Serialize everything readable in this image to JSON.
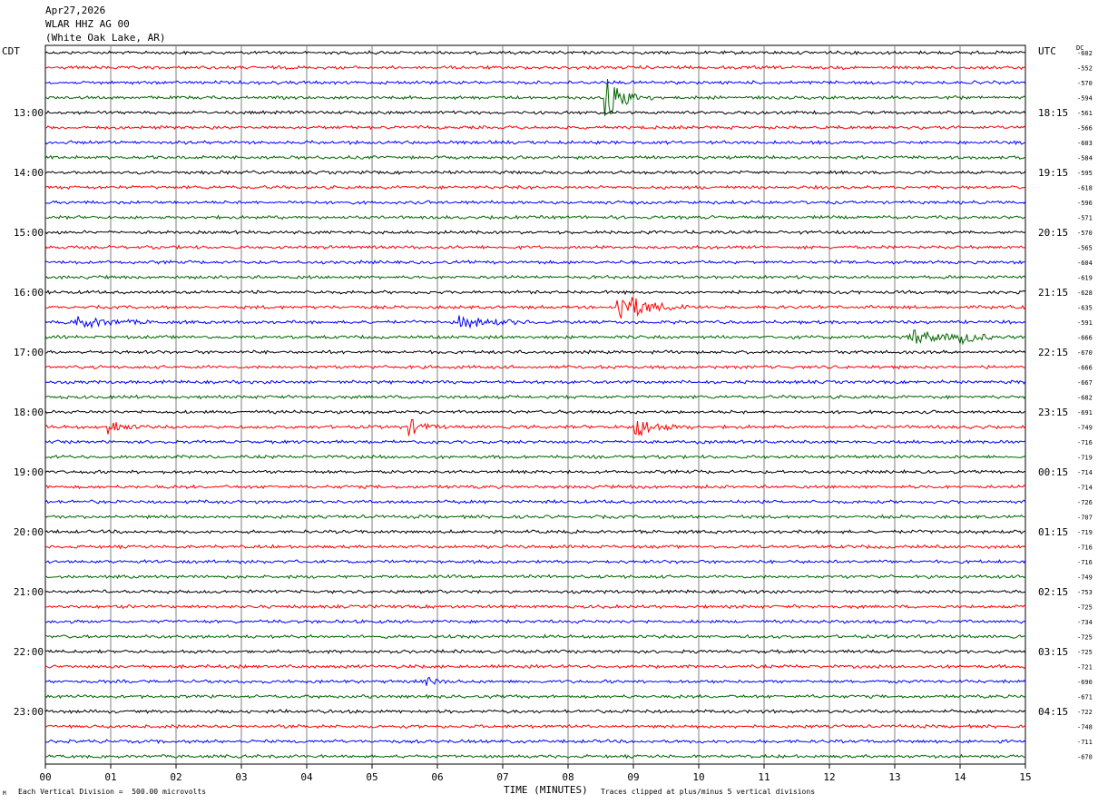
{
  "header": {
    "date": "Apr27,2026",
    "station": "WLAR HHZ AG 00",
    "location": "(White Oak Lake, AR)"
  },
  "left_axis_title": "CDT",
  "right_axis_title": "UTC",
  "dc_title": "DC",
  "footer": {
    "scale_note": "Each Vertical Division =  500.00 microvolts",
    "xlabel": "TIME (MINUTES)",
    "clip_note": "Traces clipped at plus/minus 5 vertical divisions",
    "corner_mark": "M"
  },
  "chart_data": {
    "type": "line",
    "title": "WLAR HHZ AG 00",
    "xlabel": "TIME (MINUTES)",
    "x_ticks": [
      "00",
      "01",
      "02",
      "03",
      "04",
      "05",
      "06",
      "07",
      "08",
      "09",
      "10",
      "11",
      "12",
      "13",
      "14",
      "15"
    ],
    "xlim": [
      0,
      15
    ],
    "trace_colors": [
      "#000000",
      "#ff0000",
      "#0000ff",
      "#006400"
    ],
    "trace_count": 48,
    "left_time_labels": [
      {
        "row": 4,
        "label": "13:00"
      },
      {
        "row": 8,
        "label": "14:00"
      },
      {
        "row": 12,
        "label": "15:00"
      },
      {
        "row": 16,
        "label": "16:00"
      },
      {
        "row": 20,
        "label": "17:00"
      },
      {
        "row": 24,
        "label": "18:00"
      },
      {
        "row": 28,
        "label": "19:00"
      },
      {
        "row": 32,
        "label": "20:00"
      },
      {
        "row": 36,
        "label": "21:00"
      },
      {
        "row": 40,
        "label": "22:00"
      },
      {
        "row": 44,
        "label": "23:00"
      }
    ],
    "right_time_labels": [
      {
        "row": 4,
        "label": "18:15"
      },
      {
        "row": 8,
        "label": "19:15"
      },
      {
        "row": 12,
        "label": "20:15"
      },
      {
        "row": 16,
        "label": "21:15"
      },
      {
        "row": 20,
        "label": "22:15"
      },
      {
        "row": 24,
        "label": "23:15"
      },
      {
        "row": 28,
        "label": "00:15"
      },
      {
        "row": 32,
        "label": "01:15"
      },
      {
        "row": 36,
        "label": "02:15"
      },
      {
        "row": 40,
        "label": "03:15"
      },
      {
        "row": 44,
        "label": "04:15"
      }
    ],
    "dc_offsets": [
      -602,
      -552,
      -570,
      -594,
      -561,
      -566,
      -603,
      -584,
      -595,
      -618,
      -596,
      -571,
      -570,
      -565,
      -604,
      -619,
      -628,
      -635,
      -591,
      -666,
      -670,
      -666,
      -667,
      -682,
      -691,
      -749,
      -716,
      -719,
      -714,
      -714,
      -726,
      -707,
      -719,
      -716,
      -716,
      -749,
      -753,
      -725,
      -734,
      -725,
      -725,
      -721,
      -690,
      -671,
      -722,
      -748,
      -711,
      -670
    ],
    "events": [
      {
        "row": 3,
        "minute": 8.55,
        "amplitude": 9,
        "duration": 0.5
      },
      {
        "row": 17,
        "minute": 8.75,
        "amplitude": 6,
        "duration": 0.8
      },
      {
        "row": 18,
        "minute": 0.45,
        "amplitude": 2,
        "duration": 1.0
      },
      {
        "row": 18,
        "minute": 6.3,
        "amplitude": 2,
        "duration": 1.0
      },
      {
        "row": 19,
        "minute": 13.2,
        "amplitude": 3,
        "duration": 0.9
      },
      {
        "row": 19,
        "minute": 14.0,
        "amplitude": 2,
        "duration": 0.5
      },
      {
        "row": 25,
        "minute": 0.95,
        "amplitude": 3,
        "duration": 0.4
      },
      {
        "row": 25,
        "minute": 5.55,
        "amplitude": 3,
        "duration": 0.4
      },
      {
        "row": 25,
        "minute": 9.0,
        "amplitude": 4,
        "duration": 0.6
      },
      {
        "row": 42,
        "minute": 5.8,
        "amplitude": 1.5,
        "duration": 0.4
      }
    ]
  }
}
